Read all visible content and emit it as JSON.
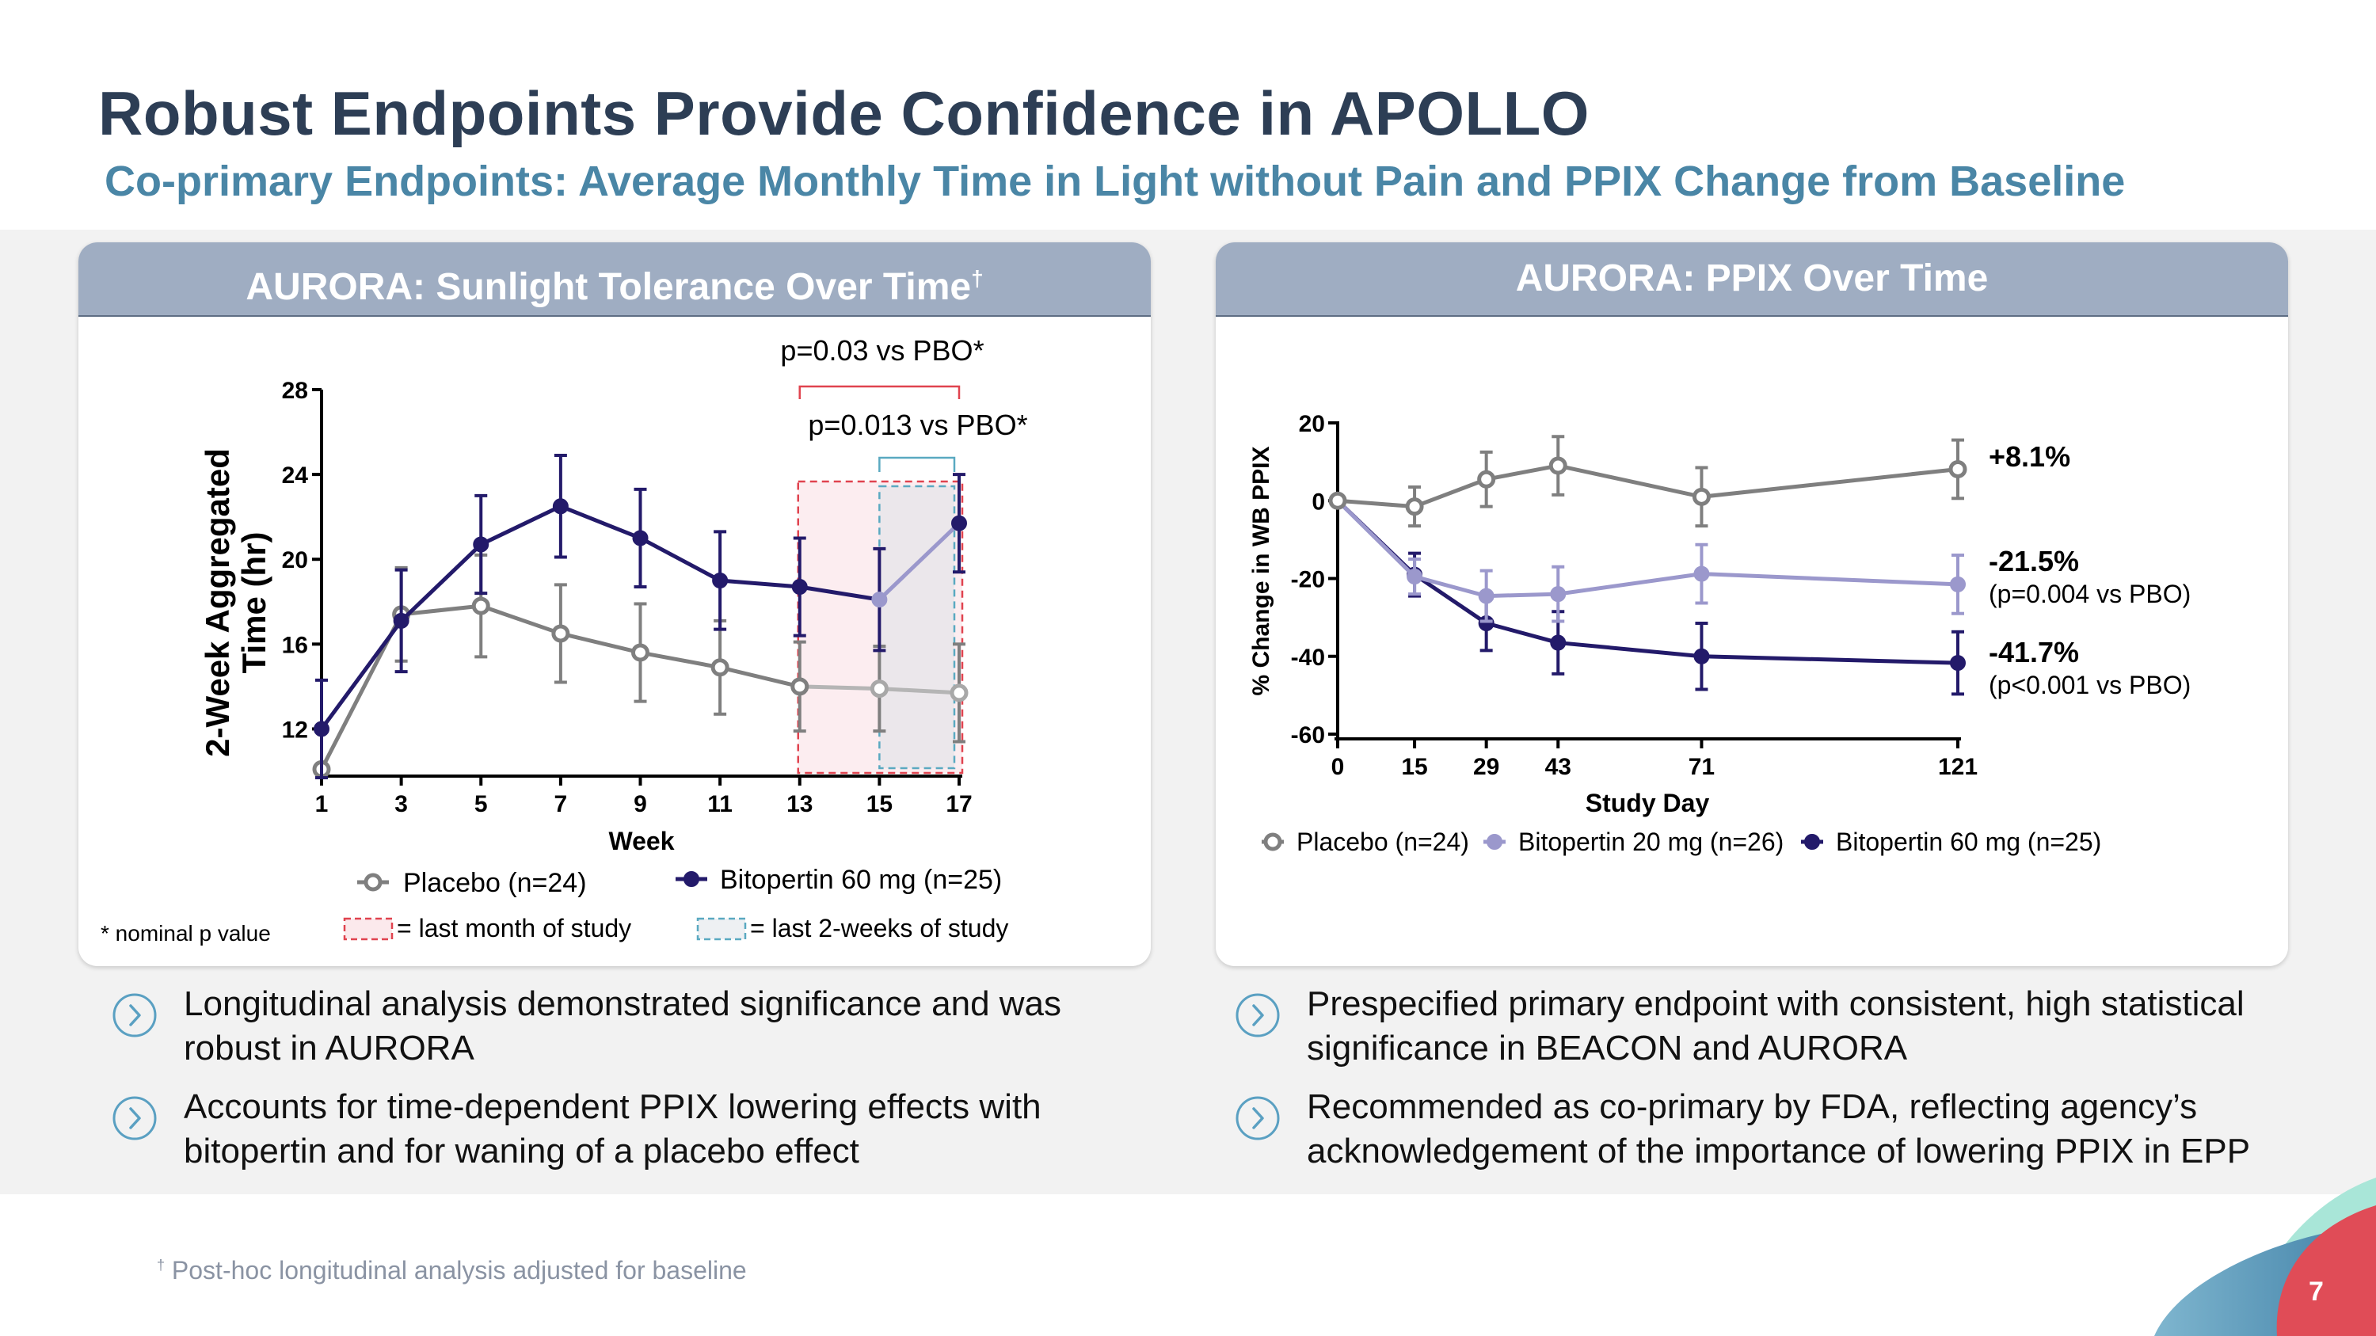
{
  "slide": {
    "title": "Robust Endpoints Provide Confidence in APOLLO",
    "subtitle": "Co-primary Endpoints: Average Monthly Time in Light without Pain and PPIX Change from Baseline",
    "page_number": "7",
    "footnote_marker": "†",
    "footnote": "Post-hoc longitudinal analysis adjusted for baseline",
    "colors": {
      "title": "#2d3e55",
      "subtitle": "#4a86a6",
      "header_bg": "#9fadc2",
      "placebo": "#7f7f7f",
      "bito20": "#9b98cc",
      "bito60": "#231a6a",
      "red_box": "#e0434f",
      "teal_box": "#5aa9c1"
    }
  },
  "left_panel": {
    "header": "AURORA: Sunlight Tolerance Over Time",
    "header_marker": "†",
    "nominal_note": "* nominal p value",
    "legend_last_month": "= last month of study",
    "legend_last_2weeks": "= last 2-weeks of study",
    "bullets": [
      "Longitudinal analysis demonstrated significance and was robust in AURORA",
      "Accounts for time-dependent PPIX lowering effects with bitopertin and for waning of a placebo effect"
    ]
  },
  "right_panel": {
    "header": "AURORA: PPIX Over Time",
    "bullets": [
      "Prespecified primary endpoint with consistent, high statistical significance in BEACON and AURORA",
      "Recommended as co-primary by FDA, reflecting agency’s acknowledgement of the importance of lowering PPIX in EPP"
    ]
  },
  "chart_data": [
    {
      "type": "line",
      "title": "AURORA: Sunlight Tolerance Over Time",
      "xlabel": "Week",
      "ylabel_lines": [
        "2-Week Aggregated",
        "Time (hr)"
      ],
      "x": [
        1,
        3,
        5,
        7,
        9,
        11,
        13,
        15,
        17
      ],
      "xticks": [
        "1",
        "3",
        "5",
        "7",
        "9",
        "11",
        "13",
        "15",
        "17"
      ],
      "yticks": [
        "12",
        "16",
        "20",
        "24",
        "28"
      ],
      "ytick_values": [
        12,
        16,
        20,
        24,
        28
      ],
      "ylim": [
        10,
        28
      ],
      "xlim": [
        1,
        17
      ],
      "series": [
        {
          "name": "Placebo (n=24)",
          "marker": "open",
          "values": [
            10.1,
            17.4,
            17.8,
            16.5,
            15.6,
            14.9,
            14.0,
            13.9,
            13.7
          ],
          "err": [
            0,
            2.2,
            2.4,
            2.3,
            2.3,
            2.2,
            2.1,
            2.0,
            2.3
          ]
        },
        {
          "name": "Bitopertin 60 mg (n=25)",
          "marker": "filled",
          "values": [
            12.0,
            17.1,
            20.7,
            22.5,
            21.0,
            19.0,
            18.7,
            18.1,
            21.7
          ],
          "err": [
            2.3,
            2.4,
            2.3,
            2.4,
            2.3,
            2.3,
            2.3,
            2.4,
            2.3
          ]
        }
      ],
      "annotations": [
        {
          "text": "p=0.03 vs PBO*",
          "x_from": 13,
          "x_to": 17
        },
        {
          "text": "p=0.013 vs PBO*",
          "x_from": 15,
          "x_to": 17
        }
      ],
      "highlight_regions": [
        {
          "label": "last month of study",
          "x_from": 13,
          "x_to": 17
        },
        {
          "label": "last 2-weeks of study",
          "x_from": 15,
          "x_to": 17
        }
      ]
    },
    {
      "type": "line",
      "title": "AURORA: PPIX Over Time",
      "xlabel": "Study Day",
      "ylabel": "% Change in WB PPIX",
      "x": [
        0,
        15,
        29,
        43,
        71,
        121
      ],
      "xticks": [
        "0",
        "15",
        "29",
        "43",
        "71",
        "121"
      ],
      "yticks": [
        "-60",
        "-40",
        "-20",
        "0",
        "20"
      ],
      "ytick_values": [
        -60,
        -40,
        -20,
        0,
        20
      ],
      "ylim": [
        -60,
        20
      ],
      "xlim": [
        0,
        121
      ],
      "series": [
        {
          "name": "Placebo (n=24)",
          "marker": "open",
          "values": [
            0,
            -1.5,
            5.5,
            9.0,
            1.0,
            8.1
          ],
          "err": [
            0,
            5,
            7,
            7.5,
            7.5,
            7.5
          ],
          "end_label": "+8.1%",
          "end_sub": ""
        },
        {
          "name": "Bitopertin 20 mg  (n=26)",
          "marker": "light",
          "values": [
            0,
            -19.5,
            -24.5,
            -24.0,
            -18.8,
            -21.5
          ],
          "err": [
            0,
            4.5,
            6.5,
            7,
            7.5,
            7.5
          ],
          "end_label": "-21.5%",
          "end_sub": "(p=0.004 vs PBO)"
        },
        {
          "name": "Bitopertin 60 mg (n=25)",
          "marker": "filled",
          "values": [
            0,
            -19.0,
            -31.5,
            -36.5,
            -40.0,
            -41.7
          ],
          "err": [
            0,
            5.5,
            7,
            8,
            8.5,
            8
          ],
          "end_label": "-41.7%",
          "end_sub": "(p<0.001 vs PBO)"
        }
      ]
    }
  ]
}
